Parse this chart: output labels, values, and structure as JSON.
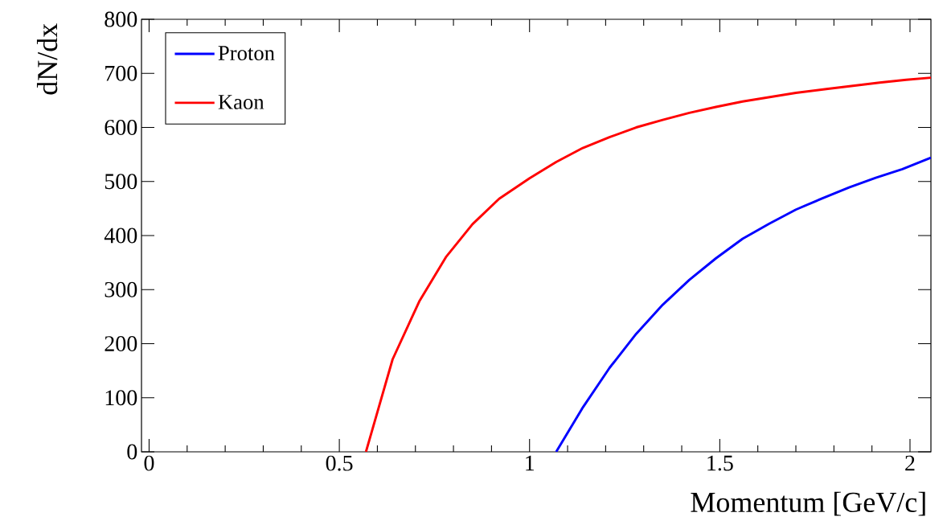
{
  "chart_data": {
    "type": "line",
    "xlabel": "Momentum [GeV/c]",
    "ylabel": "dN/dx",
    "xlim": [
      -0.02,
      2.055
    ],
    "ylim": [
      0,
      800
    ],
    "xticks": [
      0,
      0.5,
      1,
      1.5,
      2
    ],
    "yticks": [
      0,
      100,
      200,
      300,
      400,
      500,
      600,
      700,
      800
    ],
    "legend": "top left",
    "series": [
      {
        "name": "Proton",
        "color": "#0000ff",
        "x": [
          1.07,
          1.14,
          1.21,
          1.28,
          1.35,
          1.42,
          1.49,
          1.56,
          1.63,
          1.7,
          1.77,
          1.84,
          1.91,
          1.98,
          2.055
        ],
        "values": [
          0,
          82,
          155,
          218,
          272,
          318,
          358,
          394,
          422,
          448,
          469,
          489,
          507,
          523,
          544
        ]
      },
      {
        "name": "Kaon",
        "color": "#ff0000",
        "x": [
          0.57,
          0.64,
          0.71,
          0.78,
          0.85,
          0.92,
          1.0,
          1.07,
          1.14,
          1.21,
          1.28,
          1.35,
          1.42,
          1.49,
          1.56,
          1.63,
          1.7,
          1.78,
          1.85,
          1.92,
          1.99,
          2.055
        ],
        "values": [
          0,
          171,
          278,
          360,
          421,
          468,
          506,
          536,
          562,
          582,
          600,
          614,
          627,
          638,
          648,
          656,
          664,
          671,
          677,
          683,
          688,
          692
        ]
      }
    ]
  }
}
